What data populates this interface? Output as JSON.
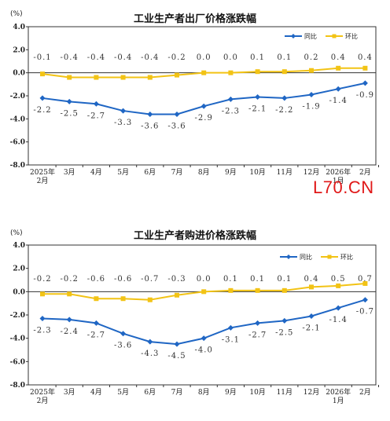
{
  "watermark": "L70.CN",
  "colors": {
    "yoy": "#1f66c4",
    "mom": "#f2c315",
    "axis": "#333333",
    "grid": "#cfcfcf"
  },
  "chart_data": [
    {
      "type": "line",
      "title": "工业生产者出厂价格涨跌幅",
      "unit": "(%)",
      "categories": [
        [
          "2025年",
          "2月"
        ],
        [
          "3月"
        ],
        [
          "4月"
        ],
        [
          "5月"
        ],
        [
          "6月"
        ],
        [
          "7月"
        ],
        [
          "8月"
        ],
        [
          "9月"
        ],
        [
          "10月"
        ],
        [
          "11月"
        ],
        [
          "12月"
        ],
        [
          "2026年",
          "1月"
        ],
        [
          "2月"
        ]
      ],
      "ylim": [
        -8.0,
        4.0
      ],
      "yticks": [
        "4.0",
        "2.0",
        "0.0",
        "-2.0",
        "-4.0",
        "-6.0",
        "-8.0"
      ],
      "legend_position": "top-right",
      "series": [
        {
          "name": "同比",
          "values": [
            -2.2,
            -2.5,
            -2.7,
            -3.3,
            -3.6,
            -3.6,
            -2.9,
            -2.3,
            -2.1,
            -2.2,
            -1.9,
            -1.4,
            -0.9
          ],
          "labels": [
            "-2.2",
            "-2.5",
            "-2.7",
            "-3.3",
            "-3.6",
            "-3.6",
            "-2.9",
            "-2.3",
            "-2.1",
            "-2.2",
            "-1.9",
            "-1.4",
            "-0.9"
          ]
        },
        {
          "name": "环比",
          "values": [
            -0.1,
            -0.4,
            -0.4,
            -0.4,
            -0.4,
            -0.2,
            0.0,
            0.0,
            0.1,
            0.1,
            0.2,
            0.4,
            0.4
          ],
          "labels": [
            "-0.1",
            "-0.4",
            "-0.4",
            "-0.4",
            "-0.4",
            "-0.2",
            "0.0",
            "0.0",
            "0.1",
            "0.1",
            "0.2",
            "0.4",
            "0.4"
          ]
        }
      ]
    },
    {
      "type": "line",
      "title": "工业生产者购进价格涨跌幅",
      "unit": "(%)",
      "categories": [
        [
          "2025年",
          "2月"
        ],
        [
          "3月"
        ],
        [
          "4月"
        ],
        [
          "5月"
        ],
        [
          "6月"
        ],
        [
          "7月"
        ],
        [
          "8月"
        ],
        [
          "9月"
        ],
        [
          "10月"
        ],
        [
          "11月"
        ],
        [
          "12月"
        ],
        [
          "2026年",
          "1月"
        ],
        [
          "2月"
        ]
      ],
      "ylim": [
        -8.0,
        4.0
      ],
      "yticks": [
        "4.0",
        "2.0",
        "0.0",
        "-2.0",
        "-4.0",
        "-6.0",
        "-8.0"
      ],
      "legend_position": "top-right",
      "series": [
        {
          "name": "同比",
          "values": [
            -2.3,
            -2.4,
            -2.7,
            -3.6,
            -4.3,
            -4.5,
            -4.0,
            -3.1,
            -2.7,
            -2.5,
            -2.1,
            -1.4,
            -0.7
          ],
          "labels": [
            "-2.3",
            "-2.4",
            "-2.7",
            "-3.6",
            "-4.3",
            "-4.5",
            "-4.0",
            "-3.1",
            "-2.7",
            "-2.5",
            "-2.1",
            "-1.4",
            "-0.7"
          ]
        },
        {
          "name": "环比",
          "values": [
            -0.2,
            -0.2,
            -0.6,
            -0.6,
            -0.7,
            -0.3,
            0.0,
            0.1,
            0.1,
            0.1,
            0.4,
            0.5,
            0.7
          ],
          "labels": [
            "-0.2",
            "-0.2",
            "-0.6",
            "-0.6",
            "-0.7",
            "-0.3",
            "0.0",
            "0.1",
            "0.1",
            "0.1",
            "0.4",
            "0.5",
            "0.7"
          ]
        }
      ]
    }
  ]
}
